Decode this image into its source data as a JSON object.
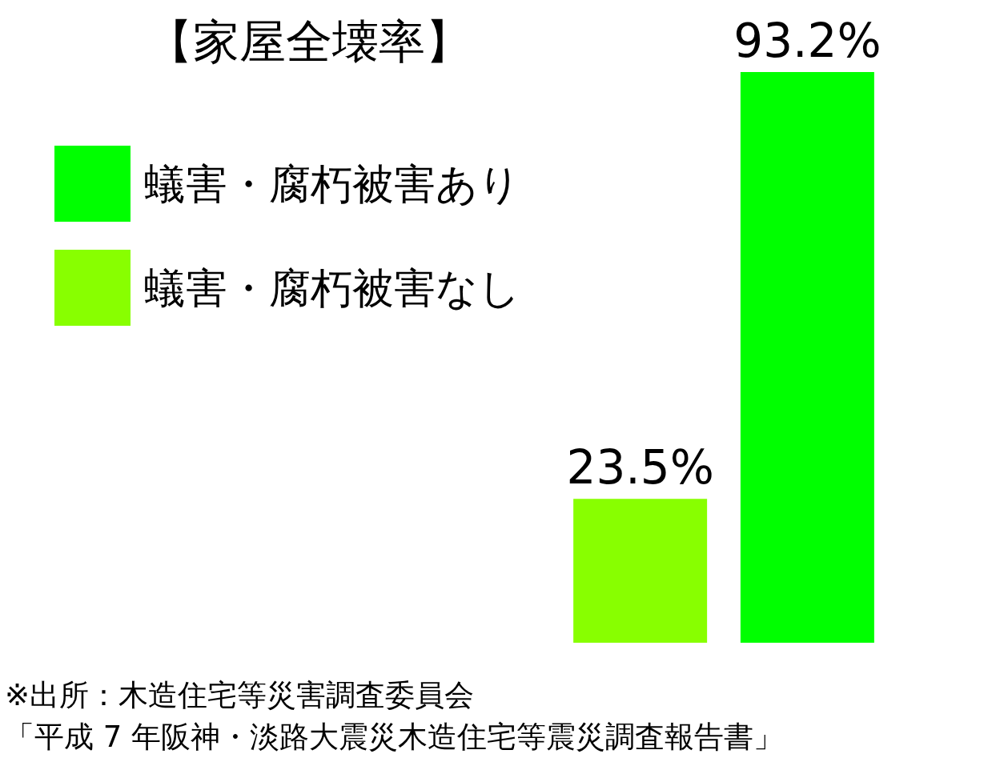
{
  "chart_data": {
    "type": "bar",
    "title": "【家屋全壊率】",
    "categories": [
      null
    ],
    "series": [
      {
        "name": "蟻害・腐朽被害なし",
        "color": "#88ff00",
        "values": [
          23.5
        ],
        "value_labels": [
          "23.5%"
        ]
      },
      {
        "name": "蟻害・腐朽被害あり",
        "color": "#00ff00",
        "values": [
          93.2
        ],
        "value_labels": [
          "93.2%"
        ]
      }
    ],
    "legend": "top left",
    "annotations": [
      "※出所：木造住宅等災害調査委員会",
      "「平成 7 年阪神・淡路大震災木造住宅等震災調査報告書」"
    ]
  }
}
